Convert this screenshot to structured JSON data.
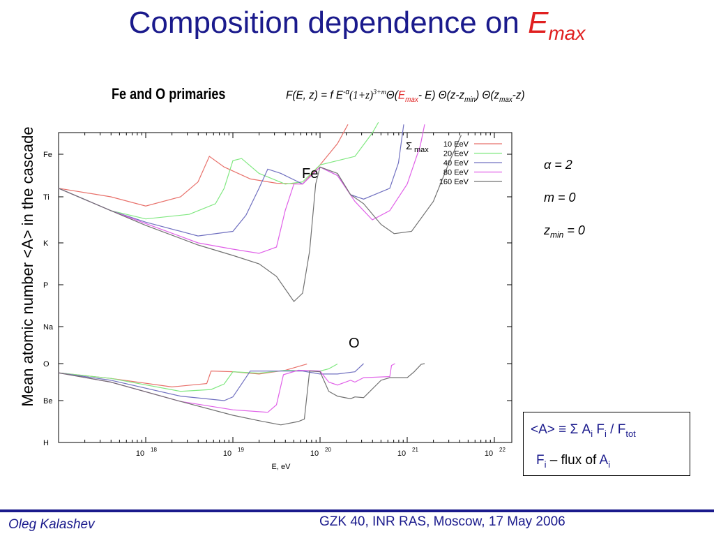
{
  "title": {
    "text": "Composition dependence on ",
    "var": "E",
    "sub": "max"
  },
  "subheading": "Fe and O primaries",
  "formula": {
    "lhs": "F(E, z) = f E",
    "exp1": "-α",
    "mid1": "(1+z)",
    "exp2": "3+m",
    "theta1": "Θ(",
    "emax_var": "E",
    "emax_sub": "max",
    "rest1": "- E) Θ(z-z",
    "zmin_sub": "min",
    "rest2": ") Θ(z",
    "zmax_sub": "max",
    "rest3": "-z)"
  },
  "params": {
    "alpha": "α = 2",
    "m": "m = 0",
    "zmin_var": "z",
    "zmin_sub": "min",
    "zmin_val": " = 0"
  },
  "definition_box": {
    "line1_a": "<A>  ≡  Σ A",
    "line1_sub1": "i",
    "line1_b": " F",
    "line1_sub2": "i",
    "line1_c": " / F",
    "line1_sub3": "tot",
    "line2_a": "F",
    "line2_sub1": "i",
    "line2_b": " – flux of ",
    "line2_c": "A",
    "line2_sub2": "i"
  },
  "footer": {
    "left": "Oleg Kalashev",
    "right": "GZK 40, INR RAS, Moscow, 17 May 2006"
  },
  "colors": {
    "title": "#1a1a8c",
    "accent": "#e02020"
  },
  "chart_data": {
    "type": "line",
    "xlabel": "E, eV",
    "ylabel": "Mean atomic number <A> in the cascade",
    "xscale": "log",
    "xlim": [
      17.0,
      22.2
    ],
    "xticks": [
      {
        "v": 18,
        "base": "10",
        "exp": "18"
      },
      {
        "v": 19,
        "base": "10",
        "exp": "19"
      },
      {
        "v": 20,
        "base": "10",
        "exp": "20"
      },
      {
        "v": 21,
        "base": "10",
        "exp": "21"
      },
      {
        "v": 22,
        "base": "10",
        "exp": "22"
      }
    ],
    "yticks": [
      "H",
      "Be",
      "O",
      "Na",
      "P",
      "K",
      "Ti",
      "Fe"
    ],
    "legend": {
      "title": "Σ",
      "title_sub": "max",
      "placement": "top-right"
    },
    "annotations": {
      "fe": "Fe",
      "o": "O"
    },
    "series": [
      {
        "name": "10 EeV",
        "color": "#e8706a",
        "fe": [
          [
            17.0,
            6.2
          ],
          [
            17.6,
            6.0
          ],
          [
            18.0,
            5.8
          ],
          [
            18.4,
            6.0
          ],
          [
            18.6,
            6.35
          ],
          [
            18.73,
            6.95
          ],
          [
            18.9,
            6.7
          ],
          [
            19.2,
            6.42
          ],
          [
            19.5,
            6.32
          ],
          [
            19.8,
            6.3
          ],
          [
            20.0,
            6.75
          ],
          [
            20.2,
            7.25
          ],
          [
            20.32,
            7.7
          ]
        ],
        "o": [
          [
            17.0,
            1.75
          ],
          [
            17.6,
            1.6
          ],
          [
            18.3,
            1.37
          ],
          [
            18.7,
            1.46
          ],
          [
            18.75,
            1.8
          ],
          [
            19.0,
            1.78
          ],
          [
            19.3,
            1.72
          ],
          [
            19.6,
            1.82
          ],
          [
            19.85,
            1.99
          ]
        ]
      },
      {
        "name": "20 EeV",
        "color": "#80e880",
        "fe": [
          [
            17.0,
            6.2
          ],
          [
            17.6,
            5.7
          ],
          [
            18.0,
            5.52
          ],
          [
            18.5,
            5.62
          ],
          [
            18.8,
            5.85
          ],
          [
            18.9,
            6.2
          ],
          [
            19.0,
            6.85
          ],
          [
            19.1,
            6.9
          ],
          [
            19.3,
            6.55
          ],
          [
            19.6,
            6.3
          ],
          [
            19.8,
            6.35
          ],
          [
            20.0,
            6.75
          ],
          [
            20.2,
            6.85
          ],
          [
            20.4,
            6.95
          ],
          [
            20.6,
            7.5
          ],
          [
            20.67,
            7.75
          ]
        ],
        "o": [
          [
            17.0,
            1.75
          ],
          [
            17.6,
            1.6
          ],
          [
            18.4,
            1.25
          ],
          [
            18.75,
            1.3
          ],
          [
            18.9,
            1.45
          ],
          [
            19.0,
            1.78
          ],
          [
            19.3,
            1.74
          ],
          [
            19.6,
            1.82
          ],
          [
            20.0,
            1.8
          ],
          [
            20.1,
            1.86
          ],
          [
            20.2,
            1.99
          ]
        ]
      },
      {
        "name": "40 EeV",
        "color": "#7070c0",
        "fe": [
          [
            17.0,
            6.2
          ],
          [
            17.6,
            5.7
          ],
          [
            18.0,
            5.45
          ],
          [
            18.6,
            5.15
          ],
          [
            19.0,
            5.25
          ],
          [
            19.15,
            5.6
          ],
          [
            19.3,
            6.2
          ],
          [
            19.4,
            6.65
          ],
          [
            19.55,
            6.55
          ],
          [
            19.8,
            6.3
          ],
          [
            20.0,
            6.7
          ],
          [
            20.2,
            6.5
          ],
          [
            20.35,
            6.05
          ],
          [
            20.5,
            5.95
          ],
          [
            20.8,
            6.2
          ],
          [
            20.9,
            6.8
          ],
          [
            20.96,
            7.7
          ]
        ],
        "o": [
          [
            17.0,
            1.75
          ],
          [
            17.6,
            1.55
          ],
          [
            18.4,
            1.12
          ],
          [
            18.9,
            1.0
          ],
          [
            19.0,
            1.1
          ],
          [
            19.1,
            1.45
          ],
          [
            19.2,
            1.8
          ],
          [
            19.5,
            1.8
          ],
          [
            19.8,
            1.8
          ],
          [
            20.0,
            1.72
          ],
          [
            20.2,
            1.72
          ],
          [
            20.4,
            1.78
          ],
          [
            20.5,
            2.0
          ]
        ]
      },
      {
        "name": "80 EeV",
        "color": "#e060e8",
        "fe": [
          [
            17.0,
            6.2
          ],
          [
            17.6,
            5.7
          ],
          [
            18.0,
            5.42
          ],
          [
            18.6,
            5.0
          ],
          [
            19.0,
            4.85
          ],
          [
            19.3,
            4.75
          ],
          [
            19.5,
            4.9
          ],
          [
            19.6,
            5.7
          ],
          [
            19.7,
            6.3
          ],
          [
            19.8,
            6.3
          ],
          [
            20.0,
            6.7
          ],
          [
            20.2,
            6.5
          ],
          [
            20.4,
            5.9
          ],
          [
            20.6,
            5.5
          ],
          [
            20.8,
            5.7
          ],
          [
            21.0,
            6.3
          ],
          [
            21.15,
            7.2
          ],
          [
            21.2,
            7.7
          ]
        ],
        "o": [
          [
            17.0,
            1.75
          ],
          [
            17.6,
            1.5
          ],
          [
            18.4,
            0.98
          ],
          [
            19.0,
            0.78
          ],
          [
            19.4,
            0.72
          ],
          [
            19.5,
            0.9
          ],
          [
            19.58,
            1.7
          ],
          [
            19.75,
            1.82
          ],
          [
            20.0,
            1.8
          ],
          [
            20.1,
            1.5
          ],
          [
            20.2,
            1.42
          ],
          [
            20.35,
            1.55
          ],
          [
            20.4,
            1.5
          ],
          [
            20.5,
            1.62
          ],
          [
            20.8,
            1.65
          ],
          [
            20.82,
            1.95
          ],
          [
            20.86,
            2.0
          ]
        ]
      },
      {
        "name": "160 EeV",
        "color": "#707070",
        "fe": [
          [
            17.0,
            6.2
          ],
          [
            17.6,
            5.7
          ],
          [
            18.0,
            5.38
          ],
          [
            18.6,
            4.95
          ],
          [
            19.0,
            4.7
          ],
          [
            19.3,
            4.5
          ],
          [
            19.5,
            4.2
          ],
          [
            19.6,
            3.9
          ],
          [
            19.7,
            3.6
          ],
          [
            19.8,
            3.8
          ],
          [
            19.88,
            4.8
          ],
          [
            19.95,
            6.3
          ],
          [
            20.0,
            6.7
          ],
          [
            20.2,
            6.55
          ],
          [
            20.35,
            6.05
          ],
          [
            20.5,
            5.85
          ],
          [
            20.7,
            5.4
          ],
          [
            20.85,
            5.2
          ],
          [
            21.05,
            5.25
          ],
          [
            21.3,
            5.9
          ],
          [
            21.5,
            6.9
          ],
          [
            21.62,
            7.45
          ]
        ],
        "o": [
          [
            17.0,
            1.75
          ],
          [
            17.6,
            1.5
          ],
          [
            18.4,
            0.98
          ],
          [
            19.0,
            0.65
          ],
          [
            19.3,
            0.52
          ],
          [
            19.55,
            0.42
          ],
          [
            19.75,
            0.5
          ],
          [
            19.82,
            0.56
          ],
          [
            19.88,
            1.8
          ],
          [
            20.0,
            1.78
          ],
          [
            20.1,
            1.25
          ],
          [
            20.2,
            1.12
          ],
          [
            20.35,
            1.05
          ],
          [
            20.4,
            1.1
          ],
          [
            20.5,
            1.08
          ],
          [
            20.7,
            1.55
          ],
          [
            20.8,
            1.62
          ],
          [
            21.0,
            1.62
          ],
          [
            21.08,
            1.78
          ],
          [
            21.16,
            1.98
          ],
          [
            21.2,
            2.0
          ]
        ]
      }
    ]
  }
}
